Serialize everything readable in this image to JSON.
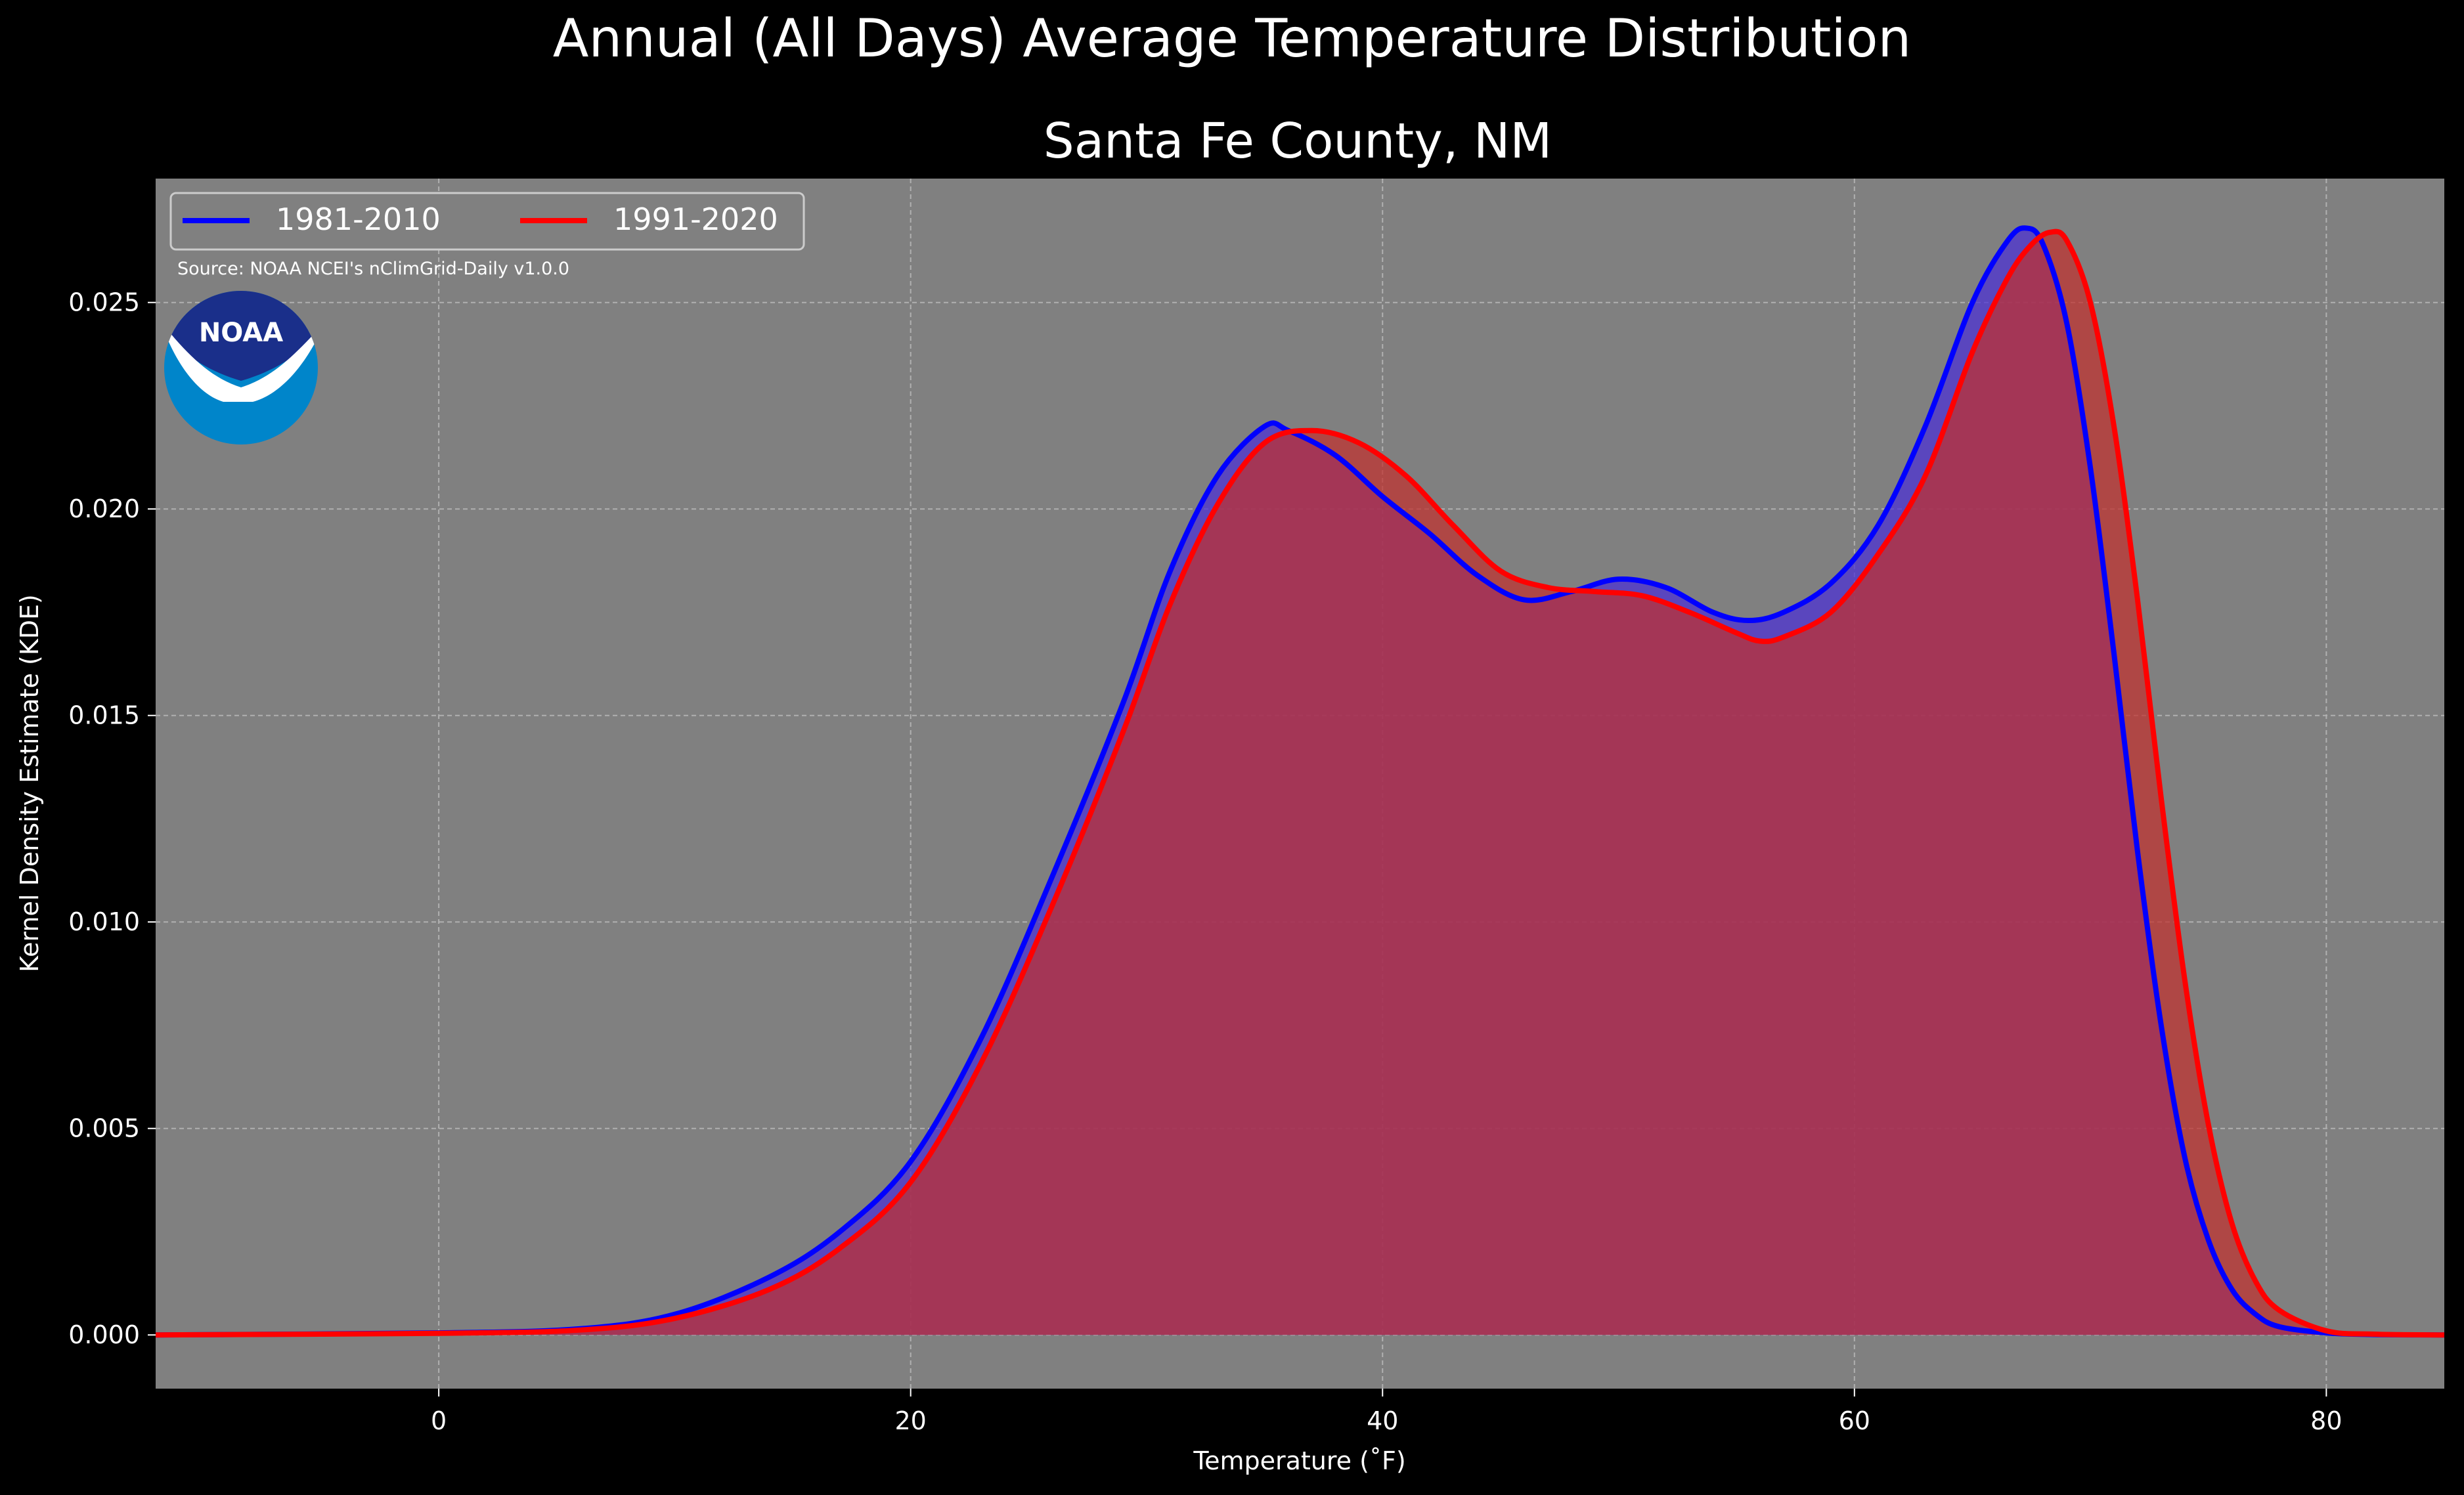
{
  "chart_data": {
    "type": "area",
    "suptitle": "Annual (All Days) Average Temperature Distribution",
    "title": "Santa Fe County, NM",
    "xlabel": "Temperature ($^\\circ$F)",
    "xlabel_display": "Temperature (˚F)",
    "ylabel": "Kernel Density Estimate (KDE)",
    "xlim": [
      -12,
      85
    ],
    "ylim": [
      -0.0013,
      0.028
    ],
    "xticks": [
      0,
      20,
      40,
      60,
      80
    ],
    "xtick_labels": [
      "0",
      "20",
      "40",
      "60",
      "80"
    ],
    "yticks": [
      0.0,
      0.005,
      0.01,
      0.015,
      0.02,
      0.025
    ],
    "ytick_labels": [
      "0.000",
      "0.005",
      "0.010",
      "0.015",
      "0.020",
      "0.025"
    ],
    "grid": true,
    "legend_position": "top-left",
    "source_text": "Source: NOAA NCEI's nClimGrid-Daily v1.0.0",
    "logo_text": "NOAA",
    "series": [
      {
        "name": "1981-2010",
        "color": "#0000ff",
        "fill_color": "#4b2fd6",
        "x": [
          -12,
          0,
          6,
          10,
          14,
          17,
          20,
          23,
          26,
          29,
          31,
          33,
          35,
          36,
          38,
          40,
          42,
          44,
          46,
          48,
          50,
          52,
          54,
          55.5,
          57,
          59,
          61,
          63,
          65,
          66.5,
          67.3,
          68,
          69,
          70,
          71,
          72,
          73,
          74,
          75,
          76,
          77,
          78,
          80,
          82,
          85
        ],
        "values": [
          0.0,
          5e-05,
          0.00015,
          0.0005,
          0.0014,
          0.0025,
          0.0042,
          0.0072,
          0.0111,
          0.0153,
          0.0185,
          0.0208,
          0.022,
          0.0219,
          0.0213,
          0.0203,
          0.0194,
          0.0184,
          0.0178,
          0.018,
          0.0183,
          0.0181,
          0.0175,
          0.0173,
          0.0175,
          0.0182,
          0.0196,
          0.022,
          0.025,
          0.0265,
          0.0268,
          0.0264,
          0.0245,
          0.021,
          0.0165,
          0.0117,
          0.0075,
          0.0043,
          0.0023,
          0.0011,
          0.0005,
          0.0002,
          5e-05,
          1e-05,
          0.0
        ]
      },
      {
        "name": "1991-2020",
        "color": "#ff0000",
        "fill_color": "#c0302e",
        "x": [
          -12,
          0,
          6,
          10,
          14,
          17,
          20,
          23,
          26,
          29,
          31,
          33,
          35,
          37,
          39,
          41,
          43,
          45,
          47,
          49,
          51,
          53,
          55,
          56,
          57,
          59,
          61,
          63,
          65,
          66.5,
          67.5,
          68.3,
          69,
          70,
          71,
          72,
          73,
          74,
          75,
          76,
          77,
          78,
          80,
          82,
          85
        ],
        "values": [
          0.0,
          4e-05,
          0.00012,
          0.0004,
          0.0011,
          0.0021,
          0.0037,
          0.0066,
          0.0104,
          0.0146,
          0.0177,
          0.0201,
          0.0216,
          0.0219,
          0.0216,
          0.0208,
          0.0196,
          0.0185,
          0.0181,
          0.018,
          0.0179,
          0.0175,
          0.017,
          0.0168,
          0.0169,
          0.0175,
          0.0189,
          0.0208,
          0.0238,
          0.0256,
          0.0264,
          0.0267,
          0.0265,
          0.025,
          0.022,
          0.0178,
          0.013,
          0.0086,
          0.0051,
          0.0027,
          0.0013,
          0.0006,
          0.0001,
          2e-05,
          0.0
        ]
      }
    ]
  }
}
